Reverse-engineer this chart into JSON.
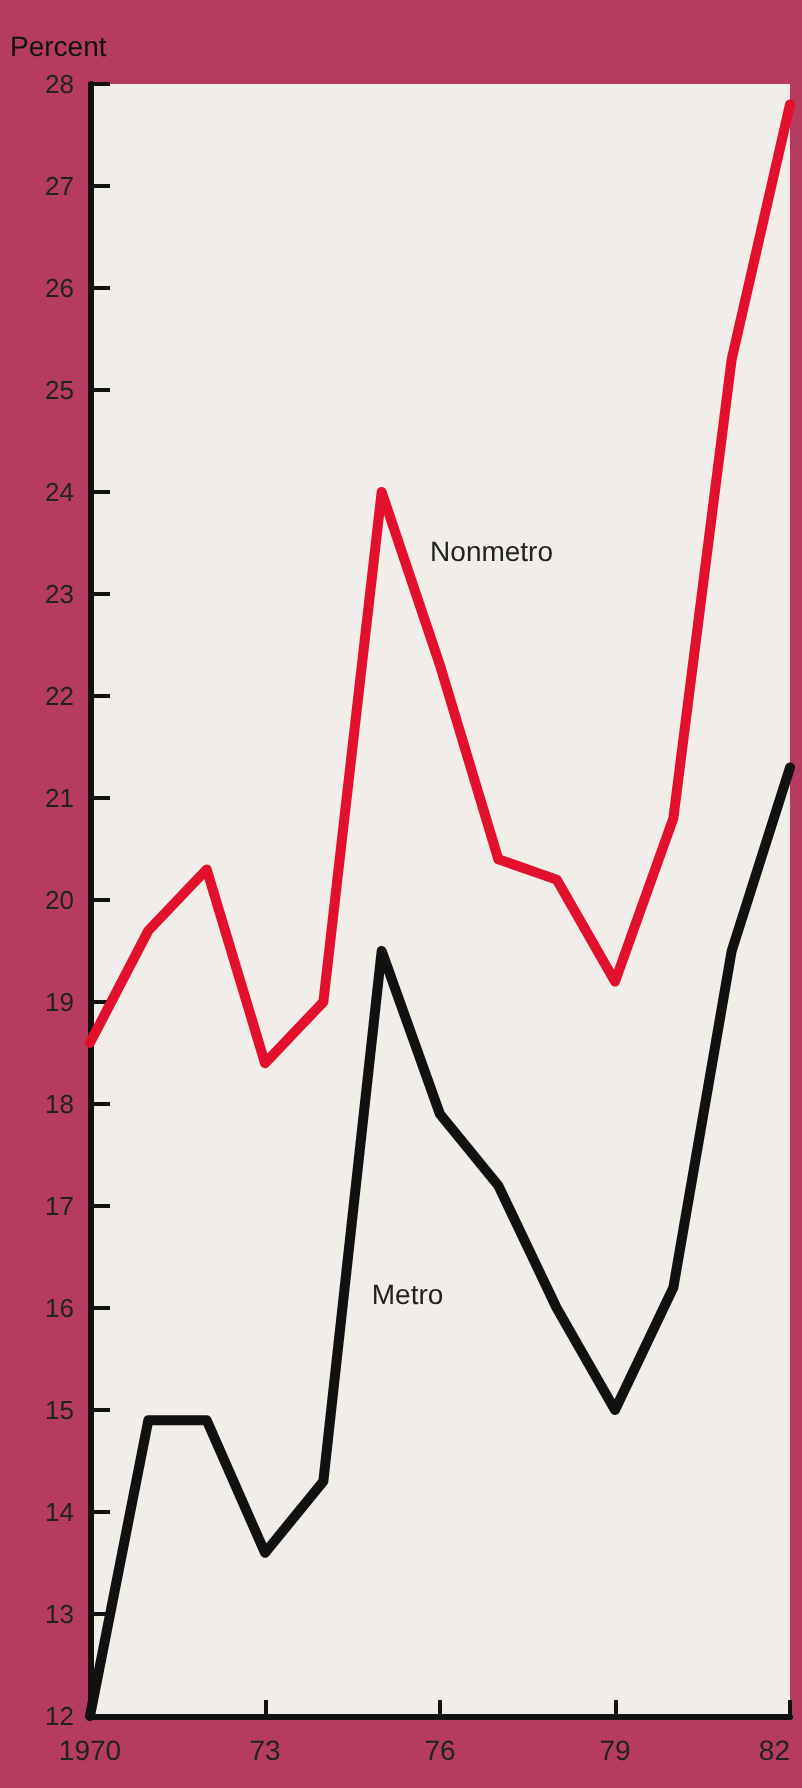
{
  "chart_data": {
    "type": "line",
    "ylabel": "Percent",
    "x": [
      1970,
      1971,
      1972,
      1973,
      1974,
      1975,
      1976,
      1977,
      1978,
      1979,
      1980,
      1981,
      1982
    ],
    "series": [
      {
        "name": "Nonmetro",
        "color": "#e2102c",
        "values": [
          18.6,
          19.7,
          20.3,
          18.4,
          19.0,
          24.0,
          22.3,
          20.4,
          20.2,
          19.2,
          20.8,
          25.3,
          27.8
        ]
      },
      {
        "name": "Metro",
        "color": "#111111",
        "values": [
          12.0,
          14.9,
          14.9,
          13.6,
          14.3,
          19.5,
          17.9,
          17.2,
          16.0,
          15.0,
          16.2,
          19.5,
          21.3
        ]
      }
    ],
    "xlim": [
      1970,
      1982
    ],
    "xticks": [
      {
        "value": 1970,
        "label": "1970"
      },
      {
        "value": 1973,
        "label": "73"
      },
      {
        "value": 1976,
        "label": "76"
      },
      {
        "value": 1979,
        "label": "79"
      },
      {
        "value": 1982,
        "label": "82"
      }
    ],
    "ylim": [
      12,
      28
    ],
    "yticks": [
      12,
      13,
      14,
      15,
      16,
      17,
      18,
      19,
      20,
      21,
      22,
      23,
      24,
      25,
      26,
      27,
      28
    ],
    "grid": false,
    "legend": false,
    "marker": "none",
    "line_style": "solid"
  }
}
